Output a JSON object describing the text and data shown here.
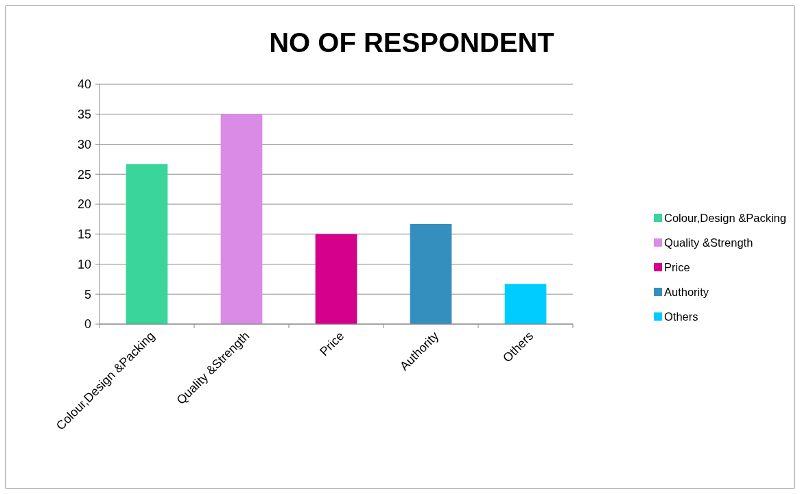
{
  "chart_data": {
    "type": "bar",
    "title": "NO OF RESPONDENT",
    "categories": [
      "Colour,Design &Packing",
      "Quality &Strength",
      "Price",
      "Authority",
      "Others"
    ],
    "series": [
      {
        "name": "Colour,Design &Packing",
        "color": "#3ad59b",
        "values": [
          26.7,
          null,
          null,
          null,
          null
        ]
      },
      {
        "name": "Quality &Strength",
        "color": "#d98be6",
        "values": [
          null,
          35,
          null,
          null,
          null
        ]
      },
      {
        "name": "Price",
        "color": "#d5008b",
        "values": [
          null,
          null,
          15,
          null,
          null
        ]
      },
      {
        "name": "Authority",
        "color": "#348fbf",
        "values": [
          null,
          null,
          null,
          16.7,
          null
        ]
      },
      {
        "name": "Others",
        "color": "#00ccff",
        "values": [
          null,
          null,
          null,
          null,
          6.7
        ]
      }
    ],
    "stacked": true,
    "ylim": [
      0,
      40
    ],
    "yticks": [
      0,
      5,
      10,
      15,
      20,
      25,
      30,
      35,
      40
    ],
    "grid": "y",
    "legend": "right"
  }
}
